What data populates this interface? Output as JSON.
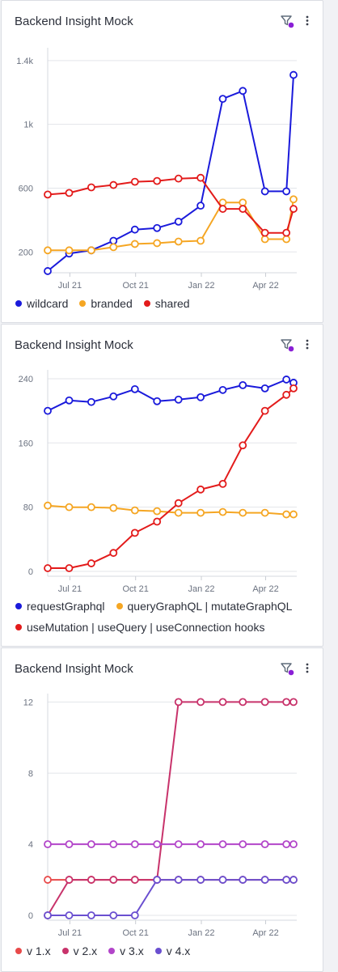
{
  "colors": {
    "blue": "#1a1adb",
    "orange": "#f5a623",
    "red": "#e31b1b",
    "filter_dot": "#8a1fd6",
    "v1": "#e84a4a",
    "v2": "#c8336b",
    "v3": "#b245c9",
    "v4": "#6a4fd0"
  },
  "cards": [
    {
      "title": "Backend Insight Mock",
      "icons": [
        "filter-icon",
        "more-vertical-icon"
      ],
      "chart_data": {
        "type": "line",
        "title": "",
        "xlabel": "",
        "ylabel": "",
        "x_ticks": [
          "Jul 21",
          "Oct 21",
          "Jan 22",
          "Apr 22"
        ],
        "y_ticks": [
          "200",
          "600",
          "1k",
          "1.4k"
        ],
        "y_tick_values": [
          200,
          600,
          1000,
          1400
        ],
        "ylim": [
          100,
          1450
        ],
        "grid": true,
        "legend": "bottom",
        "series": [
          {
            "name": "wildcard",
            "color_key": "blue",
            "points": [
              [
                "2021-05-31",
                80
              ],
              [
                "2021-06-30",
                190
              ],
              [
                "2021-07-31",
                210
              ],
              [
                "2021-08-31",
                270
              ],
              [
                "2021-09-30",
                340
              ],
              [
                "2021-10-31",
                350
              ],
              [
                "2021-11-30",
                390
              ],
              [
                "2021-12-31",
                490
              ],
              [
                "2022-01-31",
                1160
              ],
              [
                "2022-02-28",
                1210
              ],
              [
                "2022-03-31",
                580
              ],
              [
                "2022-04-30",
                580
              ],
              [
                "2022-05-10",
                1310
              ]
            ]
          },
          {
            "name": "branded",
            "color_key": "orange",
            "points": [
              [
                "2021-05-31",
                210
              ],
              [
                "2021-06-30",
                210
              ],
              [
                "2021-07-31",
                210
              ],
              [
                "2021-08-31",
                230
              ],
              [
                "2021-09-30",
                250
              ],
              [
                "2021-10-31",
                255
              ],
              [
                "2021-11-30",
                265
              ],
              [
                "2021-12-31",
                270
              ],
              [
                "2022-01-31",
                510
              ],
              [
                "2022-02-28",
                510
              ],
              [
                "2022-03-31",
                280
              ],
              [
                "2022-04-30",
                280
              ],
              [
                "2022-05-10",
                530
              ]
            ]
          },
          {
            "name": "shared",
            "color_key": "red",
            "points": [
              [
                "2021-05-31",
                560
              ],
              [
                "2021-06-30",
                570
              ],
              [
                "2021-07-31",
                605
              ],
              [
                "2021-08-31",
                620
              ],
              [
                "2021-09-30",
                640
              ],
              [
                "2021-10-31",
                645
              ],
              [
                "2021-11-30",
                660
              ],
              [
                "2021-12-31",
                665
              ],
              [
                "2022-01-31",
                470
              ],
              [
                "2022-02-28",
                470
              ],
              [
                "2022-03-31",
                320
              ],
              [
                "2022-04-30",
                320
              ],
              [
                "2022-05-10",
                470
              ]
            ]
          }
        ]
      }
    },
    {
      "title": "Backend Insight Mock",
      "icons": [
        "filter-icon",
        "more-vertical-icon"
      ],
      "chart_data": {
        "type": "line",
        "title": "",
        "xlabel": "",
        "ylabel": "",
        "x_ticks": [
          "Jul 21",
          "Oct 21",
          "Jan 22",
          "Apr 22"
        ],
        "y_ticks": [
          "0",
          "80",
          "160",
          "240"
        ],
        "y_tick_values": [
          0,
          80,
          160,
          240
        ],
        "ylim": [
          0,
          245
        ],
        "grid": true,
        "legend": "bottom",
        "series": [
          {
            "name": "requestGraphql",
            "color_key": "blue",
            "points": [
              [
                "2021-05-31",
                200
              ],
              [
                "2021-06-30",
                213
              ],
              [
                "2021-07-31",
                211
              ],
              [
                "2021-08-31",
                218
              ],
              [
                "2021-09-30",
                227
              ],
              [
                "2021-10-31",
                212
              ],
              [
                "2021-11-30",
                214
              ],
              [
                "2021-12-31",
                217
              ],
              [
                "2022-01-31",
                226
              ],
              [
                "2022-02-28",
                232
              ],
              [
                "2022-03-31",
                228
              ],
              [
                "2022-04-30",
                239
              ],
              [
                "2022-05-10",
                235
              ]
            ]
          },
          {
            "name": "queryGraphQL | mutateGraphQL",
            "color_key": "orange",
            "points": [
              [
                "2021-05-31",
                82
              ],
              [
                "2021-06-30",
                80
              ],
              [
                "2021-07-31",
                80
              ],
              [
                "2021-08-31",
                79
              ],
              [
                "2021-09-30",
                76
              ],
              [
                "2021-10-31",
                75
              ],
              [
                "2021-11-30",
                73
              ],
              [
                "2021-12-31",
                73
              ],
              [
                "2022-01-31",
                74
              ],
              [
                "2022-02-28",
                73
              ],
              [
                "2022-03-31",
                73
              ],
              [
                "2022-04-30",
                71
              ],
              [
                "2022-05-10",
                71
              ]
            ]
          },
          {
            "name": "useMutation | useQuery | useConnection hooks",
            "color_key": "red",
            "points": [
              [
                "2021-05-31",
                4
              ],
              [
                "2021-06-30",
                4
              ],
              [
                "2021-07-31",
                10
              ],
              [
                "2021-08-31",
                23
              ],
              [
                "2021-09-30",
                48
              ],
              [
                "2021-10-31",
                62
              ],
              [
                "2021-11-30",
                85
              ],
              [
                "2021-12-31",
                102
              ],
              [
                "2022-01-31",
                109
              ],
              [
                "2022-02-28",
                157
              ],
              [
                "2022-03-31",
                200
              ],
              [
                "2022-04-30",
                220
              ],
              [
                "2022-05-10",
                228
              ]
            ]
          }
        ]
      }
    },
    {
      "title": "Backend Insight Mock",
      "icons": [
        "filter-icon",
        "more-vertical-icon"
      ],
      "chart_data": {
        "type": "line",
        "title": "",
        "xlabel": "",
        "ylabel": "",
        "x_ticks": [
          "Jul 21",
          "Oct 21",
          "Jan 22",
          "Apr 22"
        ],
        "y_ticks": [
          "0",
          "4",
          "8",
          "12"
        ],
        "y_tick_values": [
          0,
          4,
          8,
          12
        ],
        "ylim": [
          0,
          12.2
        ],
        "grid": true,
        "legend": "bottom",
        "series": [
          {
            "name": "v 1.x",
            "color_key": "v1",
            "points": [
              [
                "2021-05-31",
                2
              ],
              [
                "2021-06-30",
                2
              ],
              [
                "2021-07-31",
                2
              ],
              [
                "2021-08-31",
                2
              ],
              [
                "2021-09-30",
                2
              ],
              [
                "2021-10-31",
                2
              ],
              [
                "2021-11-30",
                2
              ],
              [
                "2021-12-31",
                2
              ],
              [
                "2022-01-31",
                2
              ],
              [
                "2022-02-28",
                2
              ],
              [
                "2022-03-31",
                2
              ],
              [
                "2022-04-30",
                2
              ],
              [
                "2022-05-10",
                2
              ]
            ]
          },
          {
            "name": "v 2.x",
            "color_key": "v2",
            "points": [
              [
                "2021-05-31",
                0
              ],
              [
                "2021-06-30",
                2
              ],
              [
                "2021-07-31",
                2
              ],
              [
                "2021-08-31",
                2
              ],
              [
                "2021-09-30",
                2
              ],
              [
                "2021-10-31",
                2
              ],
              [
                "2021-11-30",
                12
              ],
              [
                "2021-12-31",
                12
              ],
              [
                "2022-01-31",
                12
              ],
              [
                "2022-02-28",
                12
              ],
              [
                "2022-03-31",
                12
              ],
              [
                "2022-04-30",
                12
              ],
              [
                "2022-05-10",
                12
              ]
            ]
          },
          {
            "name": "v 3.x",
            "color_key": "v3",
            "points": [
              [
                "2021-05-31",
                4
              ],
              [
                "2021-06-30",
                4
              ],
              [
                "2021-07-31",
                4
              ],
              [
                "2021-08-31",
                4
              ],
              [
                "2021-09-30",
                4
              ],
              [
                "2021-10-31",
                4
              ],
              [
                "2021-11-30",
                4
              ],
              [
                "2021-12-31",
                4
              ],
              [
                "2022-01-31",
                4
              ],
              [
                "2022-02-28",
                4
              ],
              [
                "2022-03-31",
                4
              ],
              [
                "2022-04-30",
                4
              ],
              [
                "2022-05-10",
                4
              ]
            ]
          },
          {
            "name": "v 4.x",
            "color_key": "v4",
            "points": [
              [
                "2021-05-31",
                0
              ],
              [
                "2021-06-30",
                0
              ],
              [
                "2021-07-31",
                0
              ],
              [
                "2021-08-31",
                0
              ],
              [
                "2021-09-30",
                0
              ],
              [
                "2021-10-31",
                2
              ],
              [
                "2021-11-30",
                2
              ],
              [
                "2021-12-31",
                2
              ],
              [
                "2022-01-31",
                2
              ],
              [
                "2022-02-28",
                2
              ],
              [
                "2022-03-31",
                2
              ],
              [
                "2022-04-30",
                2
              ],
              [
                "2022-05-10",
                2
              ]
            ]
          }
        ]
      }
    }
  ]
}
